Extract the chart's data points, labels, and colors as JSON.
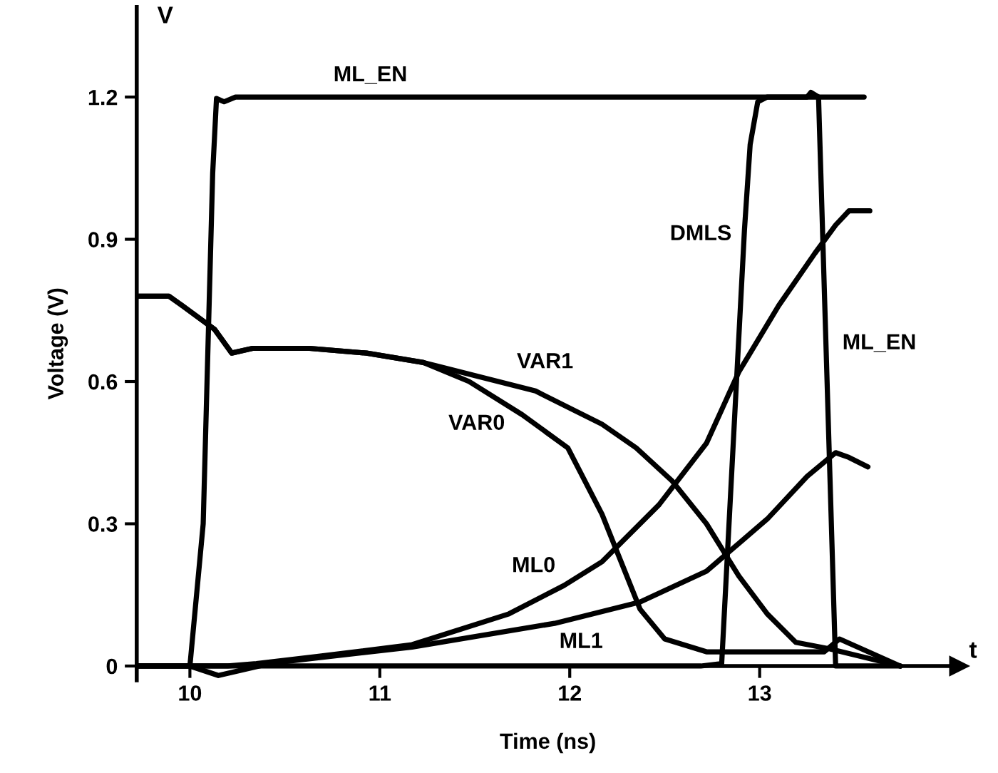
{
  "chart_data": {
    "type": "line",
    "xlabel": "Time (ns)",
    "ylabel": "Voltage (V)",
    "annotations": [
      "V",
      "t"
    ],
    "xlim": [
      9.72,
      14.05
    ],
    "ylim": [
      -0.03,
      1.39
    ],
    "xticks": [
      10,
      11,
      12,
      13
    ],
    "yticks": [
      0,
      0.3,
      0.6,
      0.9,
      1.2
    ],
    "grid": false,
    "legend": false,
    "marker": "none",
    "line_style": "solid",
    "series": [
      {
        "name": "ML_EN",
        "color": "#000000",
        "x": [
          9.72,
          10.0,
          10.07,
          10.12,
          10.14,
          10.18,
          10.24,
          13.25,
          13.27,
          13.31,
          13.4,
          13.74
        ],
        "values": [
          0,
          0,
          0.3,
          1.04,
          1.197,
          1.19,
          1.2,
          1.2,
          1.21,
          1.2,
          0,
          0
        ]
      },
      {
        "name": "DMLS",
        "color": "#000000",
        "x": [
          9.72,
          12.69,
          12.8,
          12.92,
          12.95,
          12.99,
          13.04,
          13.55
        ],
        "values": [
          0,
          0,
          0.005,
          0.92,
          1.1,
          1.19,
          1.2,
          1.2
        ]
      },
      {
        "name": "VAR1",
        "color": "#000000",
        "x": [
          9.73,
          9.89,
          9.96,
          10.13,
          10.22,
          10.33,
          10.63,
          10.93,
          11.23,
          11.82,
          12.17,
          12.35,
          12.54,
          12.72,
          12.89,
          13.04,
          13.19,
          13.37,
          13.74
        ],
        "values": [
          0.78,
          0.78,
          0.76,
          0.71,
          0.66,
          0.67,
          0.67,
          0.66,
          0.64,
          0.58,
          0.51,
          0.46,
          0.39,
          0.3,
          0.19,
          0.11,
          0.05,
          0.036,
          0
        ]
      },
      {
        "name": "VAR0",
        "color": "#000000",
        "x": [
          9.73,
          9.89,
          9.96,
          10.13,
          10.22,
          10.33,
          10.63,
          10.93,
          11.23,
          11.47,
          11.75,
          11.99,
          12.17,
          12.27,
          12.37,
          12.5,
          12.72,
          13.34,
          13.42,
          13.74
        ],
        "values": [
          0.78,
          0.78,
          0.76,
          0.71,
          0.66,
          0.67,
          0.67,
          0.66,
          0.64,
          0.6,
          0.53,
          0.46,
          0.32,
          0.22,
          0.12,
          0.057,
          0.03,
          0.03,
          0.057,
          0
        ]
      },
      {
        "name": "ML0",
        "color": "#000000",
        "x": [
          9.72,
          10.2,
          10.35,
          10.67,
          11.17,
          11.68,
          11.97,
          12.17,
          12.47,
          12.72,
          12.89,
          13.1,
          13.29,
          13.4,
          13.47,
          13.58
        ],
        "values": [
          0,
          0,
          0.005,
          0.02,
          0.045,
          0.11,
          0.17,
          0.22,
          0.34,
          0.47,
          0.62,
          0.76,
          0.87,
          0.93,
          0.96,
          0.96
        ]
      },
      {
        "name": "ML1",
        "color": "#000000",
        "x": [
          9.72,
          10.0,
          10.15,
          10.43,
          11.17,
          11.92,
          12.37,
          12.72,
          13.04,
          13.25,
          13.4,
          13.47,
          13.57
        ],
        "values": [
          0,
          0,
          -0.02,
          0.006,
          0.04,
          0.09,
          0.135,
          0.2,
          0.31,
          0.4,
          0.45,
          0.44,
          0.42
        ]
      }
    ]
  }
}
